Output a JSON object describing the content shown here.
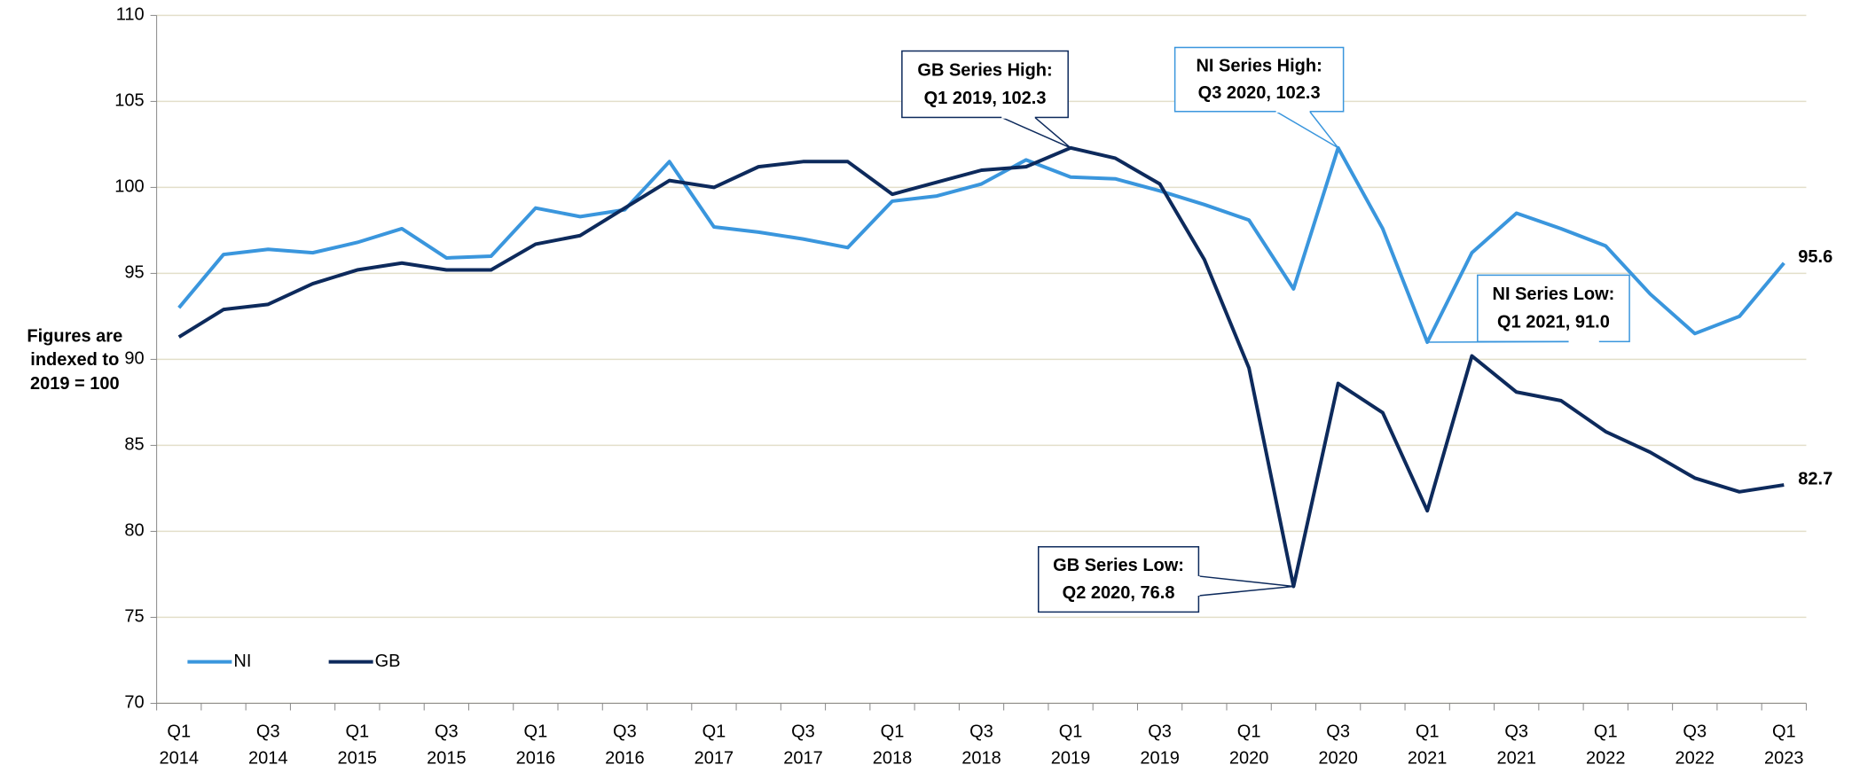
{
  "chart_data": {
    "type": "line",
    "y_label": [
      "Figures are",
      "indexed to",
      "2019 = 100"
    ],
    "categories": [
      "Q1 2014",
      null,
      "Q3 2014",
      null,
      "Q1 2015",
      null,
      "Q3 2015",
      null,
      "Q1 2016",
      null,
      "Q3 2016",
      null,
      "Q1 2017",
      null,
      "Q3 2017",
      null,
      "Q1 2018",
      null,
      "Q3 2018",
      null,
      "Q1 2019",
      null,
      "Q3 2019",
      null,
      "Q1 2020",
      null,
      "Q3 2020",
      null,
      "Q1 2021",
      null,
      "Q3 2021",
      null,
      "Q1 2022",
      null,
      "Q3 2022",
      null,
      "Q1 2023"
    ],
    "series": [
      {
        "name": "NI",
        "color": "#3a96dd",
        "values": [
          93.0,
          96.1,
          96.4,
          96.2,
          96.8,
          97.6,
          95.9,
          96.0,
          98.8,
          98.3,
          98.7,
          101.5,
          97.7,
          97.4,
          97.0,
          96.5,
          99.2,
          99.5,
          100.2,
          101.6,
          100.6,
          100.5,
          99.8,
          99.0,
          98.1,
          94.1,
          102.3,
          97.6,
          91.0,
          96.2,
          98.5,
          97.6,
          96.6,
          93.8,
          91.5,
          92.5,
          95.6
        ]
      },
      {
        "name": "GB",
        "color": "#0d2a5c",
        "values": [
          91.3,
          92.9,
          93.2,
          94.4,
          95.2,
          95.6,
          95.2,
          95.2,
          96.7,
          97.2,
          98.8,
          100.4,
          100.0,
          101.2,
          101.5,
          101.5,
          99.6,
          100.3,
          101.0,
          101.2,
          102.3,
          101.7,
          100.2,
          95.8,
          89.5,
          76.8,
          88.6,
          86.9,
          81.2,
          90.2,
          88.1,
          87.6,
          85.8,
          84.6,
          83.1,
          82.3,
          82.7
        ]
      }
    ],
    "annotations": [
      {
        "lines": [
          "GB Series High:",
          "Q1 2019, 102.3"
        ]
      },
      {
        "lines": [
          "NI Series High:",
          "Q3 2020, 102.3"
        ]
      },
      {
        "lines": [
          "NI Series Low:",
          "Q1 2021, 91.0"
        ]
      },
      {
        "lines": [
          "GB Series Low:",
          "Q2 2020, 76.8"
        ]
      }
    ],
    "ylim": [
      70,
      110
    ],
    "yticks": [
      70,
      75,
      80,
      85,
      90,
      95,
      100,
      105,
      110
    ],
    "grid": true,
    "legend": "lower left"
  }
}
